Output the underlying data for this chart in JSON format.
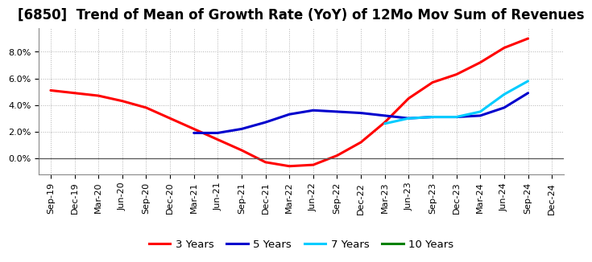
{
  "title": "[6850]  Trend of Mean of Growth Rate (YoY) of 12Mo Mov Sum of Revenues",
  "x_labels": [
    "Sep-19",
    "Dec-19",
    "Mar-20",
    "Jun-20",
    "Sep-20",
    "Dec-20",
    "Mar-21",
    "Jun-21",
    "Sep-21",
    "Dec-21",
    "Mar-22",
    "Jun-22",
    "Sep-22",
    "Dec-22",
    "Mar-23",
    "Jun-23",
    "Sep-23",
    "Dec-23",
    "Mar-24",
    "Jun-24",
    "Sep-24",
    "Dec-24"
  ],
  "ylim": [
    -0.012,
    0.098
  ],
  "yticks": [
    0.0,
    0.02,
    0.04,
    0.06,
    0.08
  ],
  "series": {
    "3 Years": {
      "color": "#ff0000",
      "x_indices": [
        0,
        1,
        2,
        3,
        4,
        5,
        6,
        7,
        8,
        9,
        10,
        11,
        12,
        13,
        14,
        15,
        16,
        17,
        18,
        19,
        20
      ],
      "values": [
        0.051,
        0.049,
        0.047,
        0.043,
        0.038,
        0.03,
        0.022,
        0.014,
        0.006,
        -0.003,
        -0.006,
        -0.005,
        0.002,
        0.012,
        0.027,
        0.045,
        0.057,
        0.063,
        0.072,
        0.083,
        0.09
      ]
    },
    "5 Years": {
      "color": "#0000cd",
      "x_indices": [
        6,
        7,
        8,
        9,
        10,
        11,
        12,
        13,
        14,
        15,
        16,
        17,
        18,
        19,
        20
      ],
      "values": [
        0.019,
        0.019,
        0.022,
        0.027,
        0.033,
        0.036,
        0.035,
        0.034,
        0.032,
        0.03,
        0.031,
        0.031,
        0.032,
        0.038,
        0.049
      ]
    },
    "7 Years": {
      "color": "#00ccff",
      "x_indices": [
        14,
        15,
        16,
        17,
        18,
        19,
        20
      ],
      "values": [
        0.026,
        0.03,
        0.031,
        0.031,
        0.035,
        0.048,
        0.058
      ]
    },
    "10 Years": {
      "color": "#008000",
      "x_indices": [],
      "values": []
    }
  },
  "legend_labels": [
    "3 Years",
    "5 Years",
    "7 Years",
    "10 Years"
  ],
  "legend_colors": [
    "#ff0000",
    "#0000cd",
    "#00ccff",
    "#008000"
  ],
  "background_color": "#ffffff",
  "grid_color": "#b0b0b0",
  "title_fontsize": 12,
  "tick_fontsize": 8
}
